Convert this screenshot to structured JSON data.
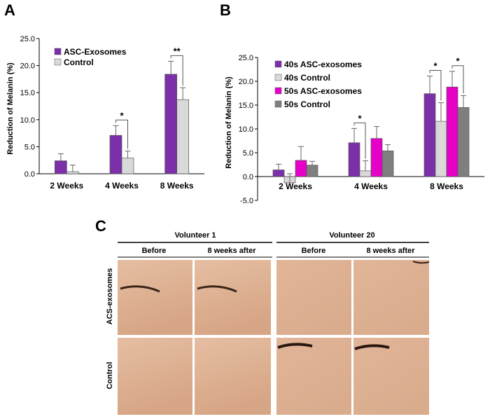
{
  "panel_labels": {
    "a": "A",
    "b": "B",
    "c": "C"
  },
  "colors": {
    "purple": "#7B2FA8",
    "light_gray": "#D9D9D9",
    "magenta": "#E600C8",
    "dark_gray": "#7F7F7F",
    "skin_top": "#E4B99C",
    "skin_bottom": "#D8A889"
  },
  "chart_data": [
    {
      "type": "bar",
      "title": "",
      "ylabel": "Reduction of Melanin (%)",
      "xlabel": "",
      "ylim": [
        0,
        25
      ],
      "yticks": [
        0,
        5,
        10,
        15,
        20,
        25
      ],
      "ytick_labels": [
        "0.0",
        "5.0",
        "10.0",
        "15.0",
        "20.0",
        "25.0"
      ],
      "categories": [
        "2 Weeks",
        "4 Weeks",
        "8 Weeks"
      ],
      "series": [
        {
          "name": "ASC-Exosomes",
          "color": "#7B2FA8",
          "values": [
            2.4,
            7.1,
            18.4
          ],
          "errors": [
            1.3,
            1.8,
            2.4
          ]
        },
        {
          "name": "Control",
          "color": "#D9D9D9",
          "values": [
            0.4,
            2.9,
            13.7
          ],
          "errors": [
            1.2,
            1.3,
            2.2
          ]
        }
      ],
      "significance": [
        {
          "category": 1,
          "from_series": 0,
          "to_series": 1,
          "label": "*"
        },
        {
          "category": 2,
          "from_series": 0,
          "to_series": 1,
          "label": "**"
        }
      ],
      "legend_position": "top-left"
    },
    {
      "type": "bar",
      "title": "",
      "ylabel": "Reduction of Melanin (%)",
      "xlabel": "",
      "ylim": [
        -5,
        25
      ],
      "yticks": [
        -5,
        0,
        5,
        10,
        15,
        20,
        25
      ],
      "ytick_labels": [
        "-5.0",
        "0.0",
        "5.0",
        "10.0",
        "15.0",
        "20.0",
        "25.0"
      ],
      "categories": [
        "2 Weeks",
        "4 Weeks",
        "8 Weeks"
      ],
      "series": [
        {
          "name": "40s ASC-exosomes",
          "color": "#7B2FA8",
          "values": [
            1.4,
            7.1,
            17.4
          ],
          "errors": [
            1.2,
            3.0,
            3.7
          ]
        },
        {
          "name": "40s Control",
          "color": "#D9D9D9",
          "values": [
            -1.3,
            1.2,
            11.6
          ],
          "errors": [
            1.9,
            2.1,
            3.9
          ]
        },
        {
          "name": "50s ASC-exosomes",
          "color": "#E600C8",
          "values": [
            3.4,
            8.0,
            18.8
          ],
          "errors": [
            2.9,
            2.5,
            3.3
          ]
        },
        {
          "name": "50s Control",
          "color": "#7F7F7F",
          "values": [
            2.4,
            5.4,
            14.5
          ],
          "errors": [
            0.8,
            1.3,
            2.5
          ]
        }
      ],
      "significance": [
        {
          "category": 1,
          "from_series": 0,
          "to_series": 1,
          "label": "*"
        },
        {
          "category": 2,
          "from_series": 0,
          "to_series": 1,
          "label": "*"
        },
        {
          "category": 2,
          "from_series": 2,
          "to_series": 3,
          "label": "*"
        }
      ],
      "legend_position": "top-left"
    }
  ],
  "photo_panel": {
    "volunteers": [
      "Volunteer 1",
      "Volunteer 20"
    ],
    "columns": [
      "Before",
      "8 weeks after"
    ],
    "rows": [
      "ACS-exosomes",
      "Control"
    ]
  }
}
